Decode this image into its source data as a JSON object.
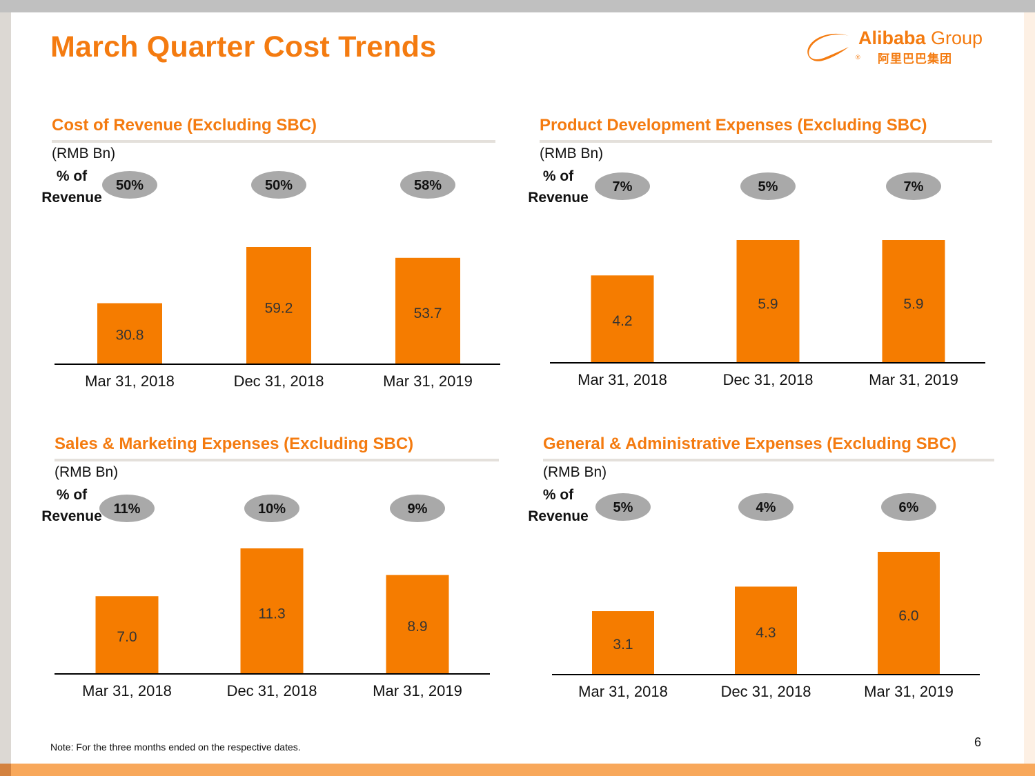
{
  "title": "March Quarter Cost Trends",
  "logo": {
    "brand_bold": "Alibaba",
    "brand_light": " Group",
    "chinese": "阿里巴巴集团",
    "registered": "®"
  },
  "unit_label": "(RMB Bn)",
  "pct_label": "% of Revenue",
  "pct_label_line1": "% of",
  "pct_label_line2": "Revenue",
  "colors": {
    "accent": "#f47b10",
    "bar": "#f57c00",
    "pill": "#a9a9a9"
  },
  "chart_data": [
    {
      "type": "bar",
      "title": "Cost of Revenue (Excluding SBC)",
      "ylabel": "(RMB Bn)",
      "categories": [
        "Mar 31, 2018",
        "Dec 31, 2018",
        "Mar 31, 2019"
      ],
      "values": [
        30.8,
        59.2,
        53.7
      ],
      "value_labels": [
        "30.8",
        "59.2",
        "53.7"
      ],
      "pct_of_revenue": [
        "50%",
        "50%",
        "58%"
      ],
      "ylim": [
        0,
        59.2
      ]
    },
    {
      "type": "bar",
      "title": "Product Development Expenses (Excluding SBC)",
      "ylabel": "(RMB Bn)",
      "categories": [
        "Mar 31, 2018",
        "Dec 31, 2018",
        "Mar 31, 2019"
      ],
      "values": [
        4.2,
        5.9,
        5.9
      ],
      "value_labels": [
        "4.2",
        "5.9",
        "5.9"
      ],
      "pct_of_revenue": [
        "7%",
        "5%",
        "7%"
      ],
      "ylim": [
        0,
        5.9
      ]
    },
    {
      "type": "bar",
      "title": "Sales & Marketing Expenses (Excluding SBC)",
      "ylabel": "(RMB Bn)",
      "categories": [
        "Mar 31, 2018",
        "Dec 31, 2018",
        "Mar 31, 2019"
      ],
      "values": [
        7.0,
        11.3,
        8.9
      ],
      "value_labels": [
        "7.0",
        "11.3",
        "8.9"
      ],
      "pct_of_revenue": [
        "11%",
        "10%",
        "9%"
      ],
      "ylim": [
        0,
        11.3
      ]
    },
    {
      "type": "bar",
      "title": "General & Administrative Expenses (Excluding SBC)",
      "ylabel": "(RMB Bn)",
      "categories": [
        "Mar 31, 2018",
        "Dec 31, 2018",
        "Mar 31, 2019"
      ],
      "values": [
        3.1,
        4.3,
        6.0
      ],
      "value_labels": [
        "3.1",
        "4.3",
        "6.0"
      ],
      "pct_of_revenue": [
        "5%",
        "4%",
        "6%"
      ],
      "ylim": [
        0,
        6.0
      ]
    }
  ],
  "footnote": "Note: For the three months ended on the respective dates.",
  "page_number": "6"
}
